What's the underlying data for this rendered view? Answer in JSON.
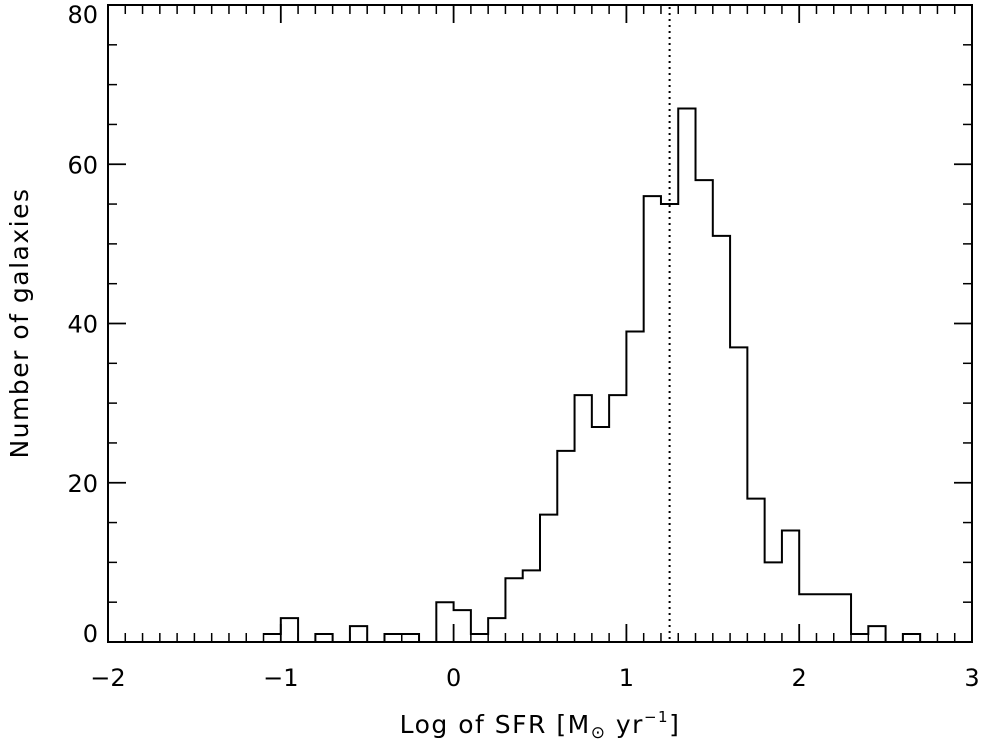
{
  "chart_data": {
    "type": "histogram",
    "xlabel_parts": {
      "prefix": "Log of SFR [M",
      "subscript": "⊙",
      "suffix": " yr",
      "superscript": "−1",
      "close": "]"
    },
    "ylabel": "Number of galaxies",
    "xlim": [
      -2,
      3
    ],
    "ylim": [
      0,
      80
    ],
    "x_ticks": [
      -2,
      -1,
      0,
      1,
      2,
      3
    ],
    "x_tick_labels": [
      "−2",
      "−1",
      "0",
      "1",
      "2",
      "3"
    ],
    "x_minor_step": 0.1,
    "y_ticks": [
      0,
      20,
      40,
      60,
      80
    ],
    "y_tick_labels": [
      "0",
      "20",
      "40",
      "60",
      "80"
    ],
    "y_minor_step": 5,
    "bin_width": 0.1,
    "bin_start": -1.1,
    "counts": [
      1,
      3,
      0,
      1,
      0,
      2,
      0,
      1,
      1,
      0,
      5,
      4,
      1,
      3,
      8,
      9,
      16,
      24,
      31,
      27,
      31,
      39,
      56,
      55,
      67,
      58,
      51,
      37,
      18,
      10,
      14,
      6,
      6,
      6,
      1,
      2,
      0,
      1,
      0
    ],
    "reference_line_x": 1.25,
    "reference_line_style": "dotted",
    "grid": false,
    "legend": "none",
    "line_color": "#000000"
  }
}
